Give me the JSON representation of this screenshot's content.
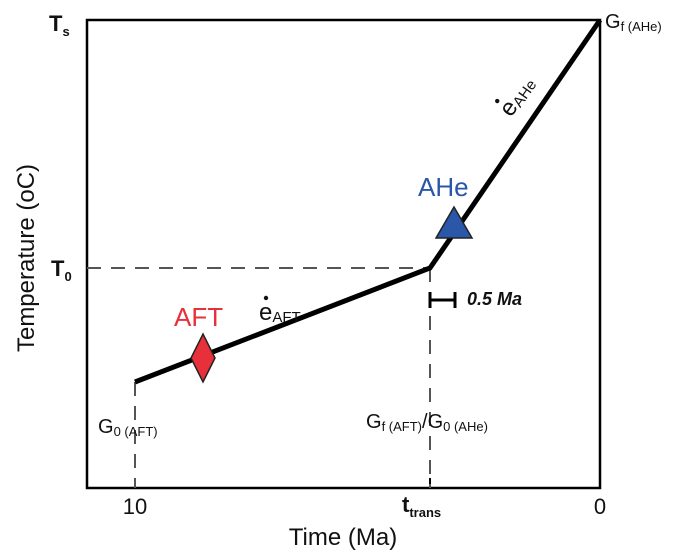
{
  "axes": {
    "y_label": "Temperature (oC)",
    "x_label": "Time (Ma)",
    "y_ticks": {
      "ts_main": "T",
      "ts_sub": "s",
      "t0_main": "T",
      "t0_sub": "0"
    },
    "x_ticks": {
      "ten": "10",
      "ttrans_main": "t",
      "ttrans_sub": "trans",
      "zero": "0"
    }
  },
  "annotations": {
    "gf_ahe_main": "G",
    "gf_ahe_sub": "f (AHe)",
    "g0_aft_main": "G",
    "g0_aft_sub": "0 (AFT)",
    "transition_main1": "G",
    "transition_sub1": "f (AFT)",
    "transition_slash": "/",
    "transition_main2": "G",
    "transition_sub2": "0 (AHe)",
    "rate_aft_main": "e",
    "rate_aft_sub": "AFT",
    "rate_ahe_main": "e",
    "rate_ahe_sub": "AHe",
    "bracket_label": "0.5 Ma",
    "aft_label": "AFT",
    "ahe_label": "AHe"
  },
  "colors": {
    "aft": "#e8303a",
    "ahe": "#2a57a8",
    "path": "#000000",
    "dashed": "#555555"
  },
  "markers": {
    "aft": "diamond",
    "ahe": "triangle"
  }
}
